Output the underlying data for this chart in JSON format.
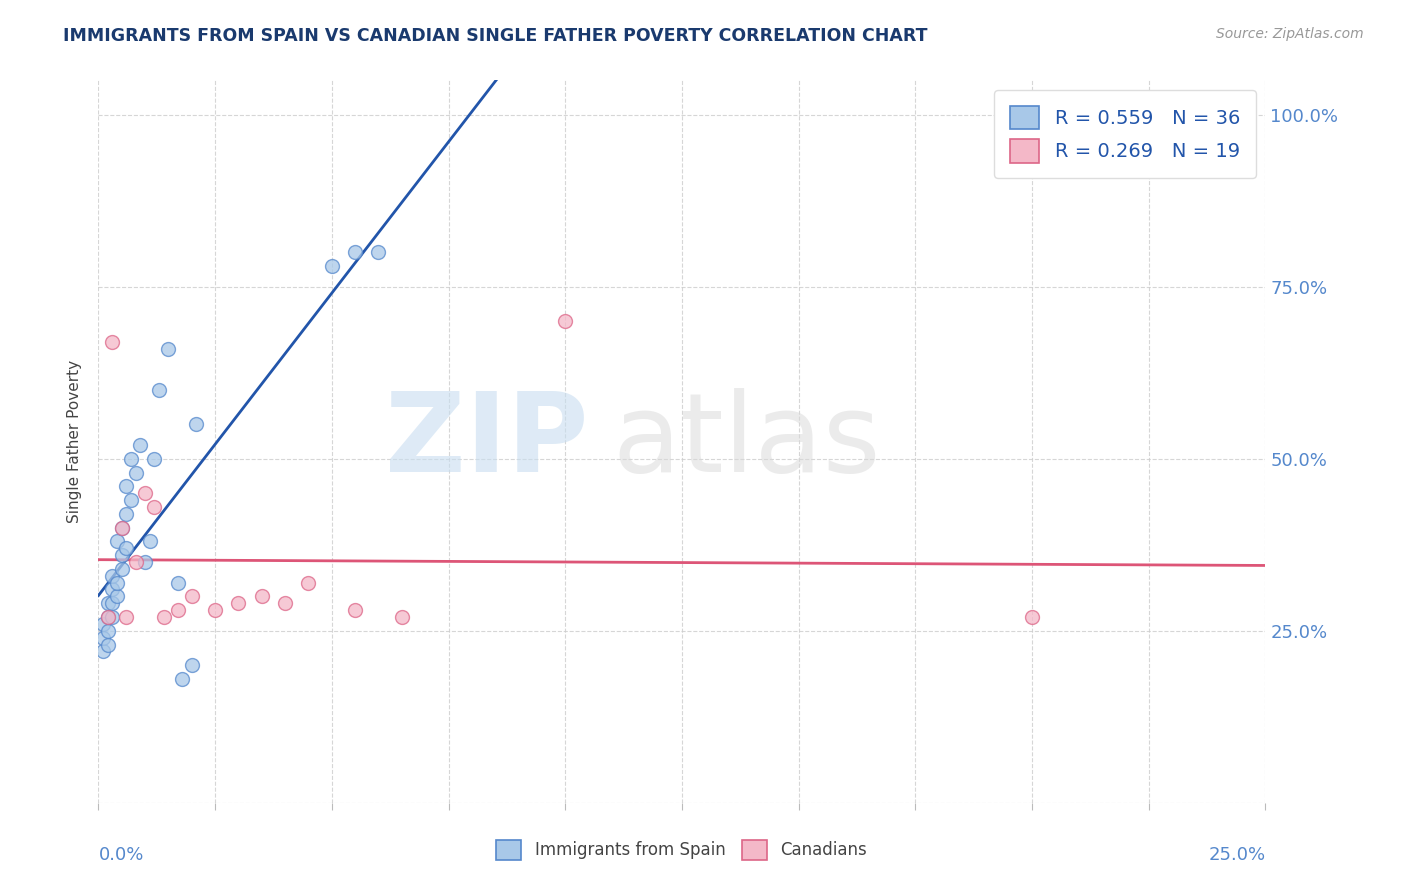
{
  "title": "IMMIGRANTS FROM SPAIN VS CANADIAN SINGLE FATHER POVERTY CORRELATION CHART",
  "source": "Source: ZipAtlas.com",
  "ylabel": "Single Father Poverty",
  "xlim": [
    0.0,
    0.25
  ],
  "ylim": [
    0.0,
    1.05
  ],
  "blue_color": "#a8c8e8",
  "pink_color": "#f4b8c8",
  "blue_edge_color": "#5588cc",
  "pink_edge_color": "#dd6688",
  "blue_line_color": "#2255aa",
  "pink_line_color": "#dd5577",
  "watermark_zip_color": "#c8ddf0",
  "watermark_atlas_color": "#d8d8d8",
  "legend_text_color": "#2255aa",
  "right_axis_color": "#5588cc",
  "title_color": "#1a3a6e",
  "source_color": "#999999",
  "grid_color": "#cccccc",
  "blue_scatter_x": [
    0.001,
    0.001,
    0.001,
    0.002,
    0.002,
    0.002,
    0.002,
    0.003,
    0.003,
    0.003,
    0.003,
    0.004,
    0.004,
    0.004,
    0.005,
    0.005,
    0.005,
    0.006,
    0.006,
    0.006,
    0.007,
    0.007,
    0.008,
    0.009,
    0.01,
    0.011,
    0.012,
    0.013,
    0.015,
    0.017,
    0.018,
    0.02,
    0.021,
    0.05,
    0.055,
    0.06
  ],
  "blue_scatter_y": [
    0.22,
    0.24,
    0.26,
    0.23,
    0.25,
    0.27,
    0.29,
    0.27,
    0.29,
    0.31,
    0.33,
    0.3,
    0.32,
    0.38,
    0.34,
    0.36,
    0.4,
    0.37,
    0.42,
    0.46,
    0.44,
    0.5,
    0.48,
    0.52,
    0.35,
    0.38,
    0.5,
    0.6,
    0.66,
    0.32,
    0.18,
    0.2,
    0.55,
    0.78,
    0.8,
    0.8
  ],
  "pink_scatter_x": [
    0.002,
    0.003,
    0.005,
    0.006,
    0.008,
    0.01,
    0.012,
    0.014,
    0.017,
    0.02,
    0.025,
    0.03,
    0.035,
    0.04,
    0.045,
    0.055,
    0.065,
    0.1,
    0.2
  ],
  "pink_scatter_y": [
    0.27,
    0.67,
    0.4,
    0.27,
    0.35,
    0.45,
    0.43,
    0.27,
    0.28,
    0.3,
    0.28,
    0.29,
    0.3,
    0.29,
    0.32,
    0.28,
    0.27,
    0.7,
    0.27
  ],
  "legend_blue_label": "R = 0.559   N = 36",
  "legend_pink_label": "R = 0.269   N = 19",
  "bottom_legend_labels": [
    "Immigrants from Spain",
    "Canadians"
  ],
  "right_ytick_labels": [
    "25.0%",
    "50.0%",
    "75.0%",
    "100.0%"
  ],
  "right_ytick_values": [
    0.25,
    0.5,
    0.75,
    1.0
  ]
}
